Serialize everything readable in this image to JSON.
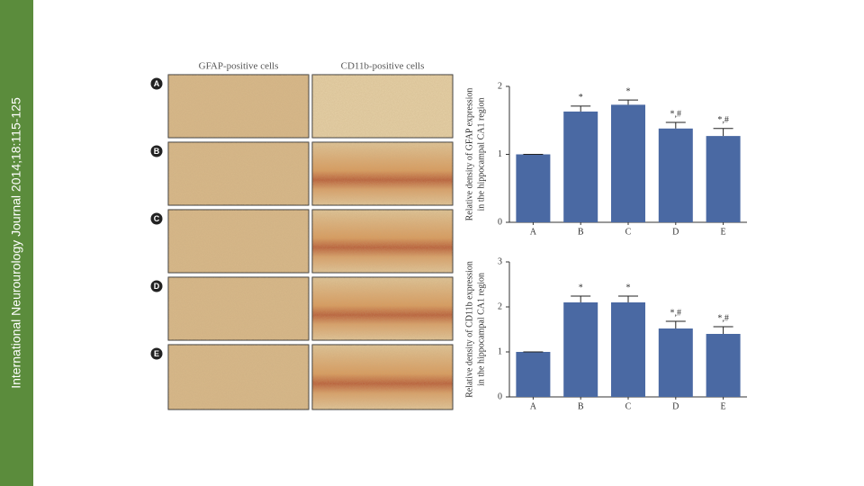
{
  "journal": "International Neurourology Journal 2014;18:115-125",
  "columns": [
    "GFAP-positive cells",
    "CD11b-positive cells"
  ],
  "panels": [
    "A",
    "B",
    "C",
    "D",
    "E"
  ],
  "chart_data": [
    {
      "type": "bar",
      "ylabel": [
        "Relative density of GFAP expression",
        "in the hippocampal CA1 region"
      ],
      "categories": [
        "A",
        "B",
        "C",
        "D",
        "E"
      ],
      "values": [
        1.0,
        1.63,
        1.73,
        1.38,
        1.27
      ],
      "errors": [
        0,
        0.08,
        0.07,
        0.09,
        0.11
      ],
      "annotations": [
        null,
        "*",
        "*",
        "*,#",
        "*,#"
      ],
      "color": "#4a69a3",
      "ylim": [
        0,
        2
      ],
      "yticks": [
        0,
        1,
        2
      ]
    },
    {
      "type": "bar",
      "ylabel": [
        "Relative density of CD11b expression",
        "in the hippocampal CA1 region"
      ],
      "categories": [
        "A",
        "B",
        "C",
        "D",
        "E"
      ],
      "values": [
        1.0,
        2.1,
        2.1,
        1.52,
        1.4
      ],
      "errors": [
        0,
        0.14,
        0.14,
        0.16,
        0.16
      ],
      "annotations": [
        null,
        "*",
        "*",
        "*,#",
        "*,#"
      ],
      "color": "#4a69a3",
      "ylim": [
        0,
        3
      ],
      "yticks": [
        0,
        1,
        2,
        3
      ]
    }
  ]
}
